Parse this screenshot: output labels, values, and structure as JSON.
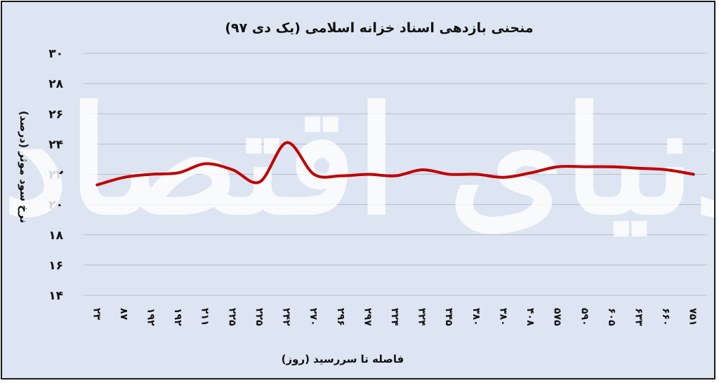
{
  "chart_data": {
    "type": "line",
    "title": "منحنی بازدهی اسناد خزانه اسلامی (یک دی ۹۷)",
    "xlabel": "فاصله تا سررسید (روز)",
    "ylabel": "نرخ سود موثر (درصد)",
    "ylim": [
      14,
      30
    ],
    "yticks": [
      "۱۴",
      "۱۶",
      "۱۸",
      "۲۰",
      "۲۲",
      "۲۴",
      "۲۶",
      "۲۸",
      "۳۰"
    ],
    "categories": [
      "۲۳",
      "۸۷",
      "۱۹۲",
      "۱۹۲",
      "۲۱۱",
      "۲۲۵",
      "۲۲۵",
      "۲۴۲",
      "۲۷۰",
      "۲۹۶",
      "۲۹۷",
      "۳۲۴",
      "۳۲۴",
      "۳۴۵",
      "۳۸۰",
      "۳۸۰",
      "۴۰۸",
      "۵۷۵",
      "۵۹۰",
      "۶۰۵",
      "۶۳۳",
      "۶۶۰",
      "۷۵۱"
    ],
    "series": [
      {
        "values": [
          21.3,
          21.8,
          22.0,
          22.1,
          22.7,
          22.3,
          21.5,
          24.1,
          22.0,
          21.9,
          22.0,
          21.9,
          22.3,
          22.0,
          22.0,
          21.8,
          22.1,
          22.5,
          22.5,
          22.5,
          22.4,
          22.3,
          22.0
        ],
        "color": "#c00000"
      }
    ],
    "grid": true,
    "legend": "none"
  },
  "watermark": {
    "text": "دنیای اقتصاد"
  }
}
